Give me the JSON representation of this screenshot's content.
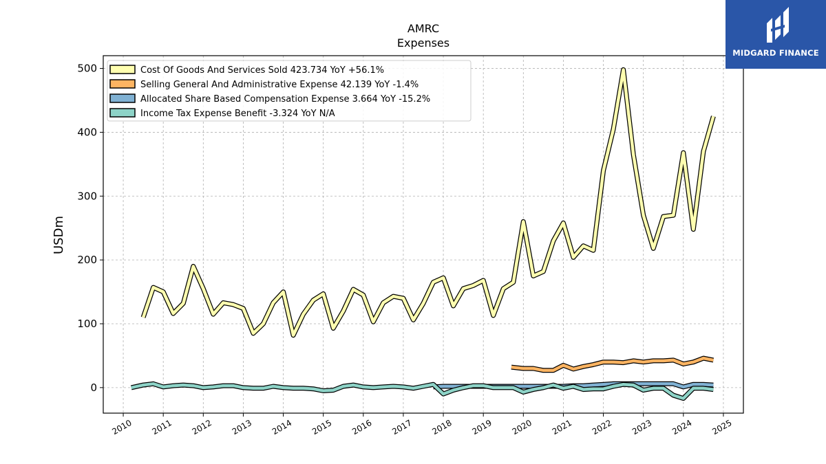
{
  "brand": {
    "name": "MIDGARD FINANCE",
    "bg_color": "#2a56a8"
  },
  "chart_data": {
    "type": "line",
    "title": "AMRC",
    "subtitle": "Expenses",
    "ylabel": "USDm",
    "xlabel": "",
    "xlim": [
      2009.5,
      2025.5
    ],
    "ylim": [
      -40,
      520
    ],
    "x_ticks": [
      2010,
      2011,
      2012,
      2013,
      2014,
      2015,
      2016,
      2017,
      2018,
      2019,
      2020,
      2021,
      2022,
      2023,
      2024,
      2025
    ],
    "y_ticks": [
      0,
      100,
      200,
      300,
      400,
      500
    ],
    "grid": true,
    "legend_position": "top-left",
    "series": [
      {
        "name": "Cost Of Goods And Services Sold",
        "legend_label": "Cost Of Goods And Services Sold  423.734 YoY +56.1%",
        "color": "#ffffb0",
        "points": [
          [
            2010.5,
            110
          ],
          [
            2010.75,
            157
          ],
          [
            2011.0,
            150
          ],
          [
            2011.25,
            116
          ],
          [
            2011.5,
            132
          ],
          [
            2011.75,
            190
          ],
          [
            2012.0,
            155
          ],
          [
            2012.25,
            115
          ],
          [
            2012.5,
            133
          ],
          [
            2012.75,
            130
          ],
          [
            2013.0,
            124
          ],
          [
            2013.25,
            85
          ],
          [
            2013.5,
            100
          ],
          [
            2013.75,
            133
          ],
          [
            2014.0,
            150
          ],
          [
            2014.25,
            82
          ],
          [
            2014.5,
            115
          ],
          [
            2014.75,
            137
          ],
          [
            2015.0,
            147
          ],
          [
            2015.25,
            93
          ],
          [
            2015.5,
            120
          ],
          [
            2015.75,
            154
          ],
          [
            2016.0,
            145
          ],
          [
            2016.25,
            103
          ],
          [
            2016.5,
            133
          ],
          [
            2016.75,
            143
          ],
          [
            2017.0,
            140
          ],
          [
            2017.25,
            106
          ],
          [
            2017.5,
            132
          ],
          [
            2017.75,
            165
          ],
          [
            2018.0,
            172
          ],
          [
            2018.25,
            128
          ],
          [
            2018.5,
            155
          ],
          [
            2018.75,
            160
          ],
          [
            2019.0,
            168
          ],
          [
            2019.25,
            113
          ],
          [
            2019.5,
            155
          ],
          [
            2019.75,
            165
          ],
          [
            2020.0,
            260
          ],
          [
            2020.25,
            175
          ],
          [
            2020.5,
            182
          ],
          [
            2020.75,
            230
          ],
          [
            2021.0,
            258
          ],
          [
            2021.25,
            204
          ],
          [
            2021.5,
            222
          ],
          [
            2021.75,
            215
          ],
          [
            2022.0,
            340
          ],
          [
            2022.25,
            405
          ],
          [
            2022.5,
            498
          ],
          [
            2022.75,
            365
          ],
          [
            2023.0,
            270
          ],
          [
            2023.25,
            218
          ],
          [
            2023.5,
            268
          ],
          [
            2023.75,
            270
          ],
          [
            2024.0,
            368
          ],
          [
            2024.25,
            248
          ],
          [
            2024.5,
            370
          ],
          [
            2024.75,
            425
          ]
        ]
      },
      {
        "name": "Selling General And Administrative Expense",
        "legend_label": "Selling General And Administrative Expense  42.139 YoY -1.4%",
        "color": "#fdb462",
        "points": [
          [
            2019.7,
            32
          ],
          [
            2020.0,
            30
          ],
          [
            2020.25,
            30
          ],
          [
            2020.5,
            27
          ],
          [
            2020.75,
            27
          ],
          [
            2021.0,
            35
          ],
          [
            2021.25,
            29
          ],
          [
            2021.5,
            33
          ],
          [
            2021.75,
            36
          ],
          [
            2022.0,
            40
          ],
          [
            2022.25,
            40
          ],
          [
            2022.5,
            39
          ],
          [
            2022.75,
            42
          ],
          [
            2023.0,
            40
          ],
          [
            2023.25,
            42
          ],
          [
            2023.5,
            42
          ],
          [
            2023.75,
            43
          ],
          [
            2024.0,
            37
          ],
          [
            2024.25,
            40
          ],
          [
            2024.5,
            46
          ],
          [
            2024.75,
            43
          ]
        ]
      },
      {
        "name": "Allocated Share Based Compensation Expense",
        "legend_label": "Allocated Share Based Compensation Expense  3.664 YoY -15.2%",
        "color": "#80b1d3",
        "points": [
          [
            2017.75,
            1
          ],
          [
            2018.0,
            2
          ],
          [
            2018.25,
            2
          ],
          [
            2018.5,
            2
          ],
          [
            2018.75,
            2
          ],
          [
            2019.0,
            2
          ],
          [
            2019.25,
            2
          ],
          [
            2019.5,
            2
          ],
          [
            2019.75,
            2
          ],
          [
            2020.0,
            2
          ],
          [
            2020.25,
            2
          ],
          [
            2020.5,
            2
          ],
          [
            2020.75,
            2
          ],
          [
            2021.0,
            2
          ],
          [
            2021.25,
            3
          ],
          [
            2021.5,
            3
          ],
          [
            2021.75,
            4
          ],
          [
            2022.0,
            5
          ],
          [
            2022.25,
            6
          ],
          [
            2022.5,
            6
          ],
          [
            2022.75,
            6
          ],
          [
            2023.0,
            6
          ],
          [
            2023.25,
            6
          ],
          [
            2023.5,
            6
          ],
          [
            2023.75,
            6
          ],
          [
            2024.0,
            1
          ],
          [
            2024.25,
            5
          ],
          [
            2024.5,
            5
          ],
          [
            2024.75,
            4
          ]
        ]
      },
      {
        "name": "Income Tax Expense Benefit",
        "legend_label": "Income Tax Expense Benefit  -3.324 YoY N/A",
        "color": "#8dd3c7",
        "points": [
          [
            2010.2,
            0
          ],
          [
            2010.5,
            4
          ],
          [
            2010.75,
            6
          ],
          [
            2011.0,
            1
          ],
          [
            2011.25,
            3
          ],
          [
            2011.5,
            4
          ],
          [
            2011.75,
            3
          ],
          [
            2012.0,
            0
          ],
          [
            2012.25,
            1
          ],
          [
            2012.5,
            3
          ],
          [
            2012.75,
            3
          ],
          [
            2013.0,
            0
          ],
          [
            2013.25,
            -1
          ],
          [
            2013.5,
            -1
          ],
          [
            2013.75,
            2
          ],
          [
            2014.0,
            0
          ],
          [
            2014.25,
            -1
          ],
          [
            2014.5,
            -1
          ],
          [
            2014.75,
            -2
          ],
          [
            2015.0,
            -5
          ],
          [
            2015.25,
            -4
          ],
          [
            2015.5,
            2
          ],
          [
            2015.75,
            4
          ],
          [
            2016.0,
            1
          ],
          [
            2016.25,
            0
          ],
          [
            2016.5,
            1
          ],
          [
            2016.75,
            2
          ],
          [
            2017.0,
            1
          ],
          [
            2017.25,
            -1
          ],
          [
            2017.5,
            2
          ],
          [
            2017.75,
            5
          ],
          [
            2018.0,
            -10
          ],
          [
            2018.25,
            -4
          ],
          [
            2018.5,
            0
          ],
          [
            2018.75,
            3
          ],
          [
            2019.0,
            3
          ],
          [
            2019.25,
            0
          ],
          [
            2019.5,
            0
          ],
          [
            2019.75,
            0
          ],
          [
            2020.0,
            -7
          ],
          [
            2020.25,
            -3
          ],
          [
            2020.5,
            0
          ],
          [
            2020.75,
            4
          ],
          [
            2021.0,
            -1
          ],
          [
            2021.25,
            2
          ],
          [
            2021.5,
            -3
          ],
          [
            2021.75,
            -2
          ],
          [
            2022.0,
            -2
          ],
          [
            2022.25,
            2
          ],
          [
            2022.5,
            5
          ],
          [
            2022.75,
            4
          ],
          [
            2023.0,
            -4
          ],
          [
            2023.25,
            -1
          ],
          [
            2023.5,
            -1
          ],
          [
            2023.75,
            -12
          ],
          [
            2024.0,
            -17
          ],
          [
            2024.25,
            -1
          ],
          [
            2024.5,
            -1
          ],
          [
            2024.75,
            -3
          ]
        ]
      }
    ]
  }
}
